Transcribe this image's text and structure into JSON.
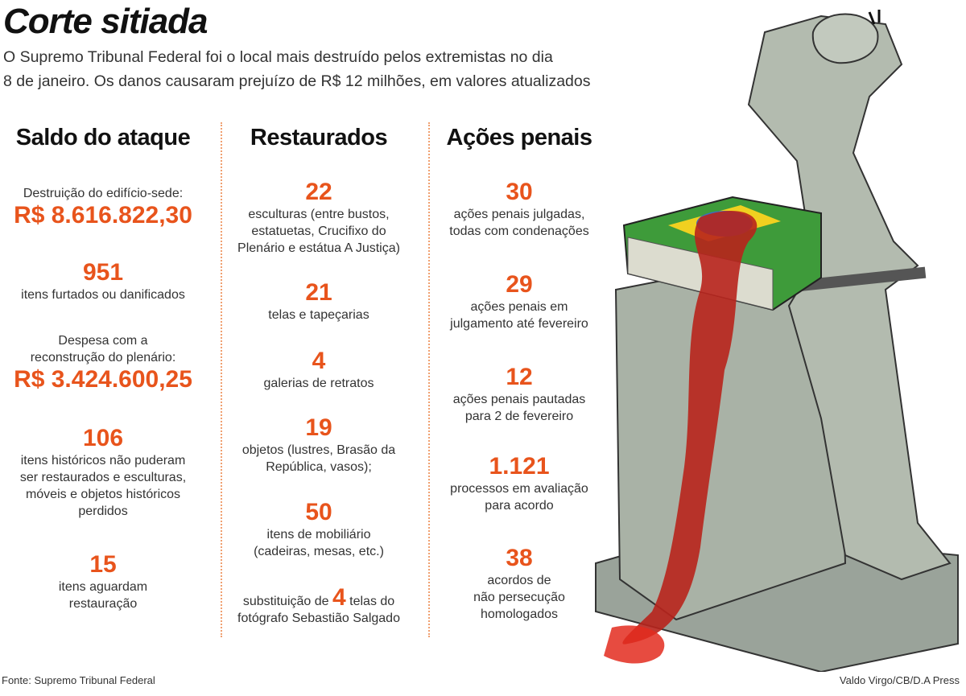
{
  "title": "Corte sitiada",
  "subtitle": [
    "O Supremo Tribunal Federal foi o local mais destruído pelos extremistas no dia",
    "8 de janeiro. Os danos causaram prejuízo de R$ 12 milhões, em valores atualizados"
  ],
  "columns": [
    {
      "heading": "Saldo do ataque",
      "items": [
        {
          "before": [
            "Destruição do edifício-sede:"
          ],
          "value": "R$ 8.616.822,30"
        },
        {
          "value": "951",
          "lines": [
            "itens furtados ou danificados"
          ]
        },
        {
          "before": [
            "Despesa com a",
            "reconstrução do plenário:"
          ],
          "value": "R$ 3.424.600,25"
        },
        {
          "value": "106",
          "lines": [
            "itens históricos não puderam",
            "ser restaurados e esculturas,",
            "móveis e objetos históricos",
            "perdidos"
          ]
        },
        {
          "value": "15",
          "lines": [
            "itens aguardam",
            "restauração"
          ]
        }
      ]
    },
    {
      "heading": "Restaurados",
      "items": [
        {
          "value": "22",
          "lines": [
            "esculturas (entre bustos,",
            "estatuetas, Crucifixo do",
            "Plenário e estátua A Justiça)"
          ]
        },
        {
          "value": "21",
          "lines": [
            "telas e tapeçarias"
          ]
        },
        {
          "value": "4",
          "lines": [
            "galerias de retratos"
          ]
        },
        {
          "value": "19",
          "lines": [
            "objetos (lustres, Brasão da",
            "República, vasos);"
          ]
        },
        {
          "value": "50",
          "lines": [
            "itens de mobiliário",
            "(cadeiras, mesas, etc.)"
          ]
        },
        {
          "prefix": "substituição de",
          "value": "4",
          "suffix": "telas do",
          "lines": [
            "fotógrafo Sebastião Salgado"
          ]
        }
      ]
    },
    {
      "heading": "Ações penais",
      "items": [
        {
          "value": "30",
          "lines": [
            "ações penais julgadas,",
            "todas com condenações"
          ]
        },
        {
          "value": "29",
          "lines": [
            "ações penais em",
            "julgamento até fevereiro"
          ]
        },
        {
          "value": "12",
          "lines": [
            "ações penais pautadas",
            "para 2 de fevereiro"
          ]
        },
        {
          "value": "1.121",
          "lines": [
            "processos em avaliação",
            "para acordo"
          ]
        },
        {
          "value": "38",
          "lines": [
            "acordos de",
            "não persecução",
            "homologados"
          ]
        }
      ]
    }
  ],
  "source": "Fonte: Supremo Tribunal Federal",
  "credit": "Valdo Virgo/CB/D.A Press"
}
